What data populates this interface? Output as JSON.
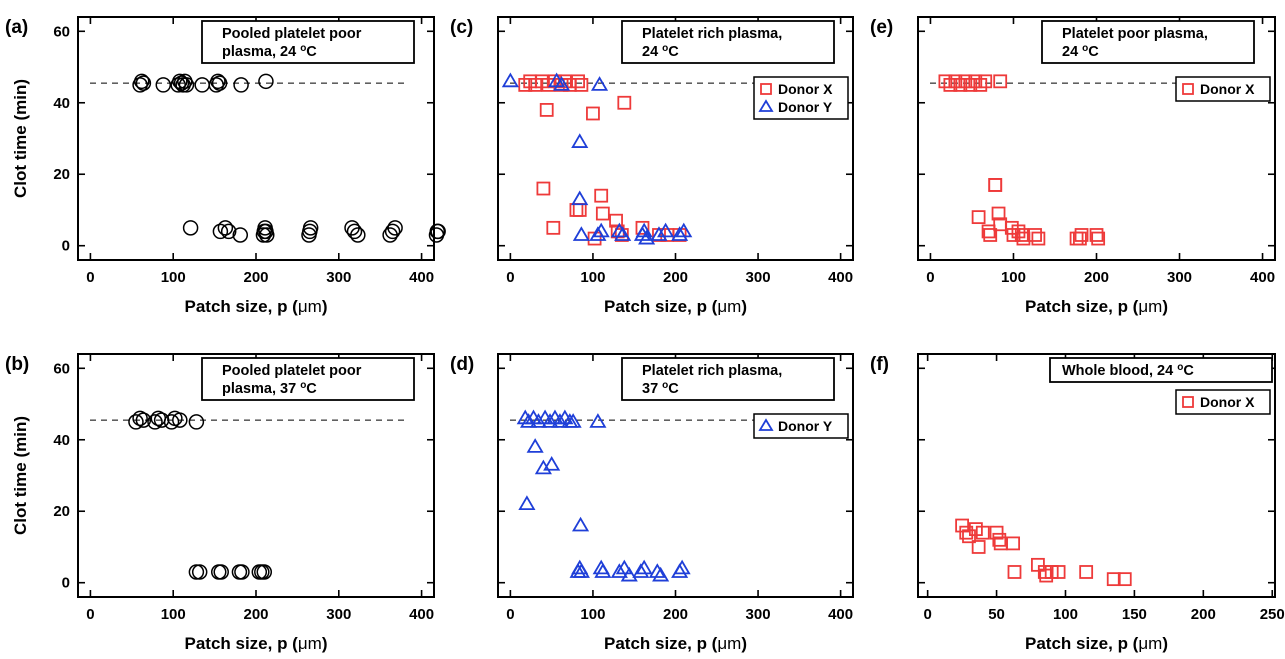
{
  "figure": {
    "ylabel": "Clot time (min)",
    "xlabel": "Patch size, p (",
    "xlabel_unit": "μm",
    "xlabel_close": ")"
  },
  "colors": {
    "black": "#000000",
    "red": "#ee3a3a",
    "blue": "#1f3fd8"
  },
  "chart_data": [
    {
      "id": "a",
      "panel_label": "(a)",
      "type": "scatter",
      "title_lines": [
        "Pooled platelet poor",
        "plasma, 24 ",
        "C"
      ],
      "title_degree": "o",
      "xlim": [
        -15,
        415
      ],
      "ylim": [
        -4,
        64
      ],
      "xticks": [
        0,
        100,
        200,
        300,
        400
      ],
      "yticks": [
        0,
        20,
        40,
        60
      ],
      "xtick_labels": [
        "0",
        "100",
        "200",
        "300",
        "400"
      ],
      "ytick_labels": [
        "0",
        "20",
        "40",
        "60"
      ],
      "show_xticklabels": true,
      "show_yticklabels": true,
      "cutoff": 45.5,
      "legend": [],
      "series": [
        {
          "marker": "circle",
          "color": "#000000",
          "x": [
            60,
            62,
            64,
            88,
            106,
            108,
            110,
            112,
            114,
            116,
            135,
            152,
            154,
            156,
            182,
            212,
            121,
            157,
            163,
            167,
            181,
            209,
            210,
            211,
            212,
            213,
            264,
            265,
            266,
            316,
            319,
            323,
            362,
            365,
            368,
            418,
            419,
            420
          ],
          "y": [
            45,
            46,
            45.5,
            45,
            45,
            46,
            45.5,
            45,
            46,
            45,
            45,
            45,
            46,
            45.5,
            45,
            46,
            5,
            4,
            5,
            4,
            3,
            3,
            4,
            5,
            4,
            3,
            3,
            4,
            5,
            5,
            4,
            3,
            3,
            4,
            5,
            3,
            4,
            4
          ]
        }
      ]
    },
    {
      "id": "c",
      "panel_label": "(c)",
      "type": "scatter",
      "title_lines": [
        "Platelet rich plasma,",
        "24 ",
        "C"
      ],
      "title_degree": "o",
      "xlim": [
        -15,
        415
      ],
      "ylim": [
        -4,
        64
      ],
      "xticks": [
        0,
        100,
        200,
        300,
        400
      ],
      "yticks": [
        0,
        20,
        40,
        60
      ],
      "xtick_labels": [
        "0",
        "100",
        "200",
        "300",
        "400"
      ],
      "ytick_labels": [
        "0",
        "20",
        "40",
        "60"
      ],
      "show_xticklabels": true,
      "show_yticklabels": false,
      "cutoff": 45.5,
      "legend": [
        "Donor X",
        "Donor Y"
      ],
      "series": [
        {
          "name": "Donor X",
          "marker": "square",
          "color": "#ee3a3a",
          "x": [
            18,
            24,
            30,
            38,
            46,
            54,
            62,
            66,
            72,
            82,
            86,
            44,
            100,
            138,
            40,
            52,
            80,
            84,
            102,
            110,
            112,
            128,
            130,
            135,
            160,
            180,
            190,
            205
          ],
          "y": [
            45,
            46,
            45,
            46,
            45,
            46,
            45,
            46,
            45,
            46,
            45,
            38,
            37,
            40,
            16,
            5,
            10,
            10,
            2,
            14,
            9,
            7,
            4,
            3,
            5,
            3,
            3,
            3
          ]
        },
        {
          "name": "Donor Y",
          "marker": "triangle",
          "color": "#1f3fd8",
          "x": [
            0,
            56,
            62,
            108,
            84,
            84,
            86,
            106,
            110,
            132,
            136,
            160,
            162,
            165,
            180,
            188,
            205,
            210
          ],
          "y": [
            46,
            46,
            45,
            45,
            29,
            13,
            3,
            3,
            4,
            4,
            3,
            3,
            4,
            2,
            3,
            4,
            3,
            4
          ]
        }
      ]
    },
    {
      "id": "e",
      "panel_label": "(e)",
      "type": "scatter",
      "title_lines": [
        "Platelet poor plasma,",
        "24 ",
        "C"
      ],
      "title_degree": "o",
      "xlim": [
        -15,
        415
      ],
      "ylim": [
        -4,
        64
      ],
      "xticks": [
        0,
        100,
        200,
        300,
        400
      ],
      "yticks": [
        0,
        20,
        40,
        60
      ],
      "xtick_labels": [
        "0",
        "100",
        "200",
        "300",
        "400"
      ],
      "ytick_labels": [
        "0",
        "20",
        "40",
        "60"
      ],
      "show_xticklabels": true,
      "show_yticklabels": false,
      "cutoff": 45.5,
      "legend": [
        "Donor X"
      ],
      "series": [
        {
          "name": "Donor X",
          "marker": "square",
          "color": "#ee3a3a",
          "x": [
            18,
            24,
            30,
            36,
            42,
            48,
            54,
            60,
            66,
            84,
            78,
            78,
            82,
            58,
            84,
            70,
            72,
            98,
            100,
            106,
            110,
            112,
            126,
            130,
            176,
            180,
            182,
            200,
            202
          ],
          "y": [
            46,
            45,
            46,
            45,
            46,
            45,
            46,
            45,
            46,
            46,
            17,
            17,
            9,
            8,
            6,
            4,
            3,
            5,
            3,
            4,
            3,
            2,
            3,
            2,
            2,
            2,
            3,
            3,
            2
          ],
          "open_gaps": true
        }
      ]
    },
    {
      "id": "b",
      "panel_label": "(b)",
      "type": "scatter",
      "title_lines": [
        "Pooled platelet poor",
        "plasma, 37 ",
        "C"
      ],
      "title_degree": "o",
      "xlim": [
        -15,
        415
      ],
      "ylim": [
        -4,
        64
      ],
      "xticks": [
        0,
        100,
        200,
        300,
        400
      ],
      "yticks": [
        0,
        20,
        40,
        60
      ],
      "xtick_labels": [
        "0",
        "100",
        "200",
        "300",
        "400"
      ],
      "ytick_labels": [
        "0",
        "20",
        "40",
        "60"
      ],
      "show_xticklabels": true,
      "show_yticklabels": true,
      "cutoff": 45.5,
      "legend": [],
      "series": [
        {
          "marker": "circle",
          "color": "#000000",
          "x": [
            55,
            60,
            64,
            78,
            82,
            86,
            98,
            102,
            108,
            128,
            128,
            132,
            155,
            158,
            180,
            183,
            204,
            207,
            210
          ],
          "y": [
            45,
            46,
            45.5,
            45,
            46,
            45.5,
            45,
            46,
            45.5,
            45,
            3,
            3,
            3,
            3,
            3,
            3,
            3,
            3,
            3
          ]
        }
      ]
    },
    {
      "id": "d",
      "panel_label": "(d)",
      "type": "scatter",
      "title_lines": [
        "Platelet rich plasma,",
        "37 ",
        "C"
      ],
      "title_degree": "o",
      "xlim": [
        -15,
        415
      ],
      "ylim": [
        -4,
        64
      ],
      "xticks": [
        0,
        100,
        200,
        300,
        400
      ],
      "yticks": [
        0,
        20,
        40,
        60
      ],
      "xtick_labels": [
        "0",
        "100",
        "200",
        "300",
        "400"
      ],
      "ytick_labels": [
        "0",
        "20",
        "40",
        "60"
      ],
      "show_xticklabels": true,
      "show_yticklabels": false,
      "cutoff": 45.5,
      "legend": [
        "Donor Y"
      ],
      "series": [
        {
          "name": "Donor Y",
          "marker": "triangle",
          "color": "#1f3fd8",
          "x": [
            18,
            22,
            28,
            34,
            42,
            48,
            54,
            60,
            66,
            72,
            76,
            106,
            30,
            40,
            50,
            20,
            85,
            82,
            84,
            86,
            110,
            112,
            132,
            138,
            144,
            158,
            162,
            178,
            182,
            205,
            208
          ],
          "y": [
            46,
            45,
            46,
            45,
            46,
            45,
            46,
            45,
            46,
            45,
            45,
            45,
            38,
            32,
            33,
            22,
            16,
            3,
            4,
            3,
            4,
            3,
            3,
            4,
            2,
            3,
            4,
            3,
            2,
            3,
            4
          ]
        }
      ]
    },
    {
      "id": "f",
      "panel_label": "(f)",
      "type": "scatter",
      "title_lines": [
        "Whole blood, 24 ",
        "C"
      ],
      "title_degree": "o",
      "xlim": [
        -7,
        252
      ],
      "ylim": [
        -4,
        64
      ],
      "xticks": [
        0,
        50,
        100,
        150,
        200,
        250
      ],
      "yticks": [
        0,
        20,
        40,
        60
      ],
      "xtick_labels": [
        "0",
        "50",
        "100",
        "150",
        "200",
        "250"
      ],
      "ytick_labels": [
        "0",
        "20",
        "40",
        "60"
      ],
      "show_xticklabels": true,
      "show_yticklabels": false,
      "cutoff": null,
      "legend": [
        "Donor X"
      ],
      "series": [
        {
          "name": "Donor X",
          "marker": "square",
          "color": "#ee3a3a",
          "x": [
            25,
            28,
            30,
            35,
            37,
            40,
            50,
            52,
            53,
            62,
            63,
            80,
            85,
            86,
            90,
            95,
            115,
            135,
            143
          ],
          "y": [
            16,
            14,
            13,
            15,
            10,
            14,
            14,
            12,
            11,
            11,
            3,
            5,
            3,
            2,
            3,
            3,
            3,
            1,
            1
          ]
        }
      ]
    }
  ]
}
